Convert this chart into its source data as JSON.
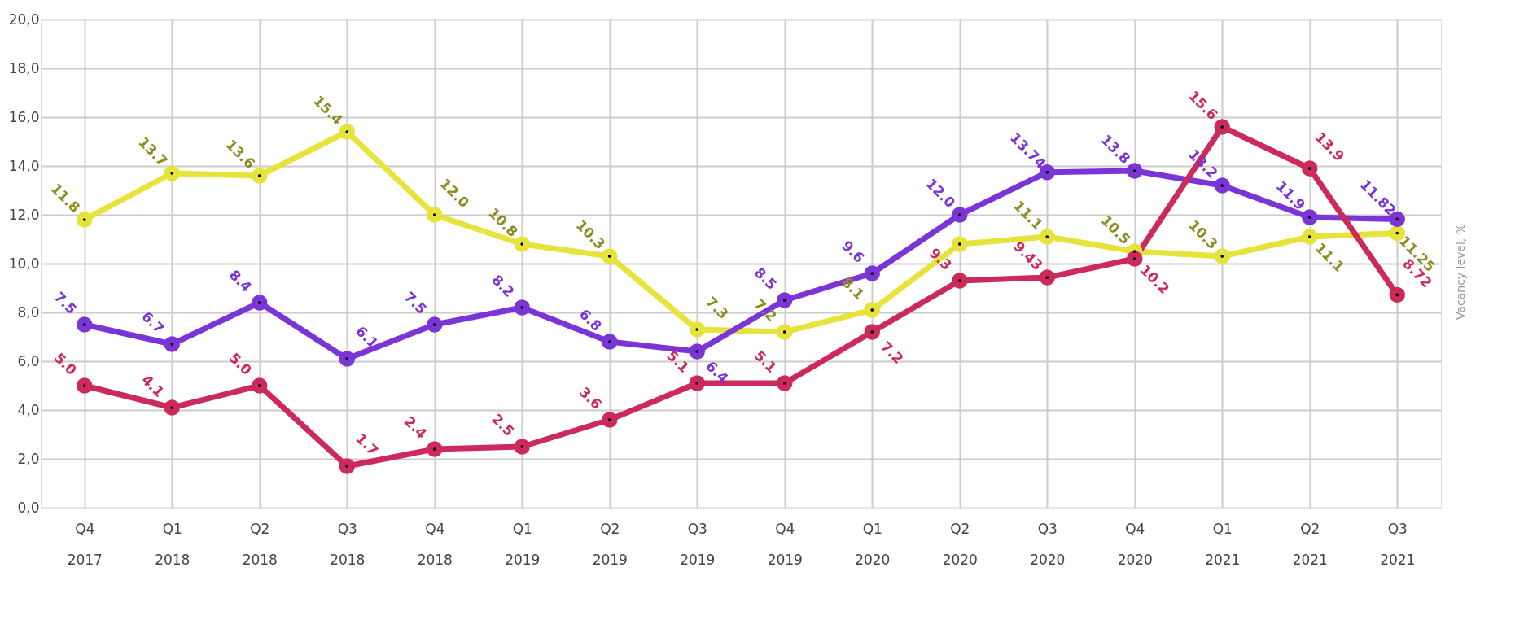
{
  "chart_data": {
    "type": "line",
    "ylabel": "Vacancy level, %",
    "categories": [
      "Q4 2017",
      "Q1 2018",
      "Q2 2018",
      "Q3 2018",
      "Q4 2018",
      "Q1 2019",
      "Q2 2019",
      "Q3 2019",
      "Q4 2019",
      "Q1 2020",
      "Q2 2020",
      "Q3 2020",
      "Q4 2020",
      "Q1 2021",
      "Q2 2021",
      "Q3 2021"
    ],
    "series": [
      {
        "color": "#e6e33a",
        "values": [
          11.8,
          13.7,
          13.6,
          15.4,
          12.0,
          10.8,
          10.3,
          7.3,
          7.2,
          8.1,
          10.8,
          11.1,
          10.5,
          10.3,
          11.1,
          11.25
        ],
        "value_labels": [
          "11.8",
          "13.7",
          "13.6",
          "15.4",
          "12.0",
          "10.8",
          "10.3",
          "7.3",
          "7.2",
          "8.1",
          null,
          "11.1",
          "10.5",
          "10.3",
          "11.1",
          "11.25"
        ]
      },
      {
        "color": "#7b35d6",
        "values": [
          7.5,
          6.7,
          8.4,
          6.1,
          7.5,
          8.2,
          6.8,
          6.4,
          8.5,
          9.6,
          12.0,
          13.74,
          13.8,
          13.2,
          11.9,
          11.82
        ],
        "value_labels": [
          "7.5",
          "6.7",
          "8.4",
          "6.1",
          "7.5",
          "8.2",
          "6.8",
          "6.4",
          "8.5",
          "9.6",
          "12.0",
          "13.74",
          "13.8",
          "13.2",
          "11.9",
          "11.82"
        ]
      },
      {
        "color": "#cc2a5a",
        "values": [
          5.0,
          4.1,
          5.0,
          1.7,
          2.4,
          2.5,
          3.6,
          5.1,
          5.1,
          7.2,
          9.3,
          9.43,
          10.2,
          15.6,
          13.9,
          8.72
        ],
        "value_labels": [
          "5.0",
          "4.1",
          "5.0",
          "1.7",
          "2.4",
          "2.5",
          "3.6",
          "5.1",
          "5.1",
          "7.2",
          "9.3",
          "9.43",
          "10.2",
          "15.6",
          "13.9",
          "8.72"
        ]
      }
    ],
    "ylim": [
      0,
      20
    ],
    "yticks": [
      {
        "value": 0,
        "label": "0,0"
      },
      {
        "value": 2,
        "label": "2,0"
      },
      {
        "value": 4,
        "label": "4,0"
      },
      {
        "value": 6,
        "label": "6,0"
      },
      {
        "value": 8,
        "label": "8,0"
      },
      {
        "value": 10,
        "label": "10,0"
      },
      {
        "value": 12,
        "label": "12,0"
      },
      {
        "value": 14,
        "label": "14,0"
      },
      {
        "value": 16,
        "label": "16,0"
      },
      {
        "value": 18,
        "label": "18,0"
      },
      {
        "value": 20,
        "label": "20,0"
      }
    ],
    "grid": true,
    "legend": false,
    "marker": "circle",
    "line_style": "solid"
  }
}
